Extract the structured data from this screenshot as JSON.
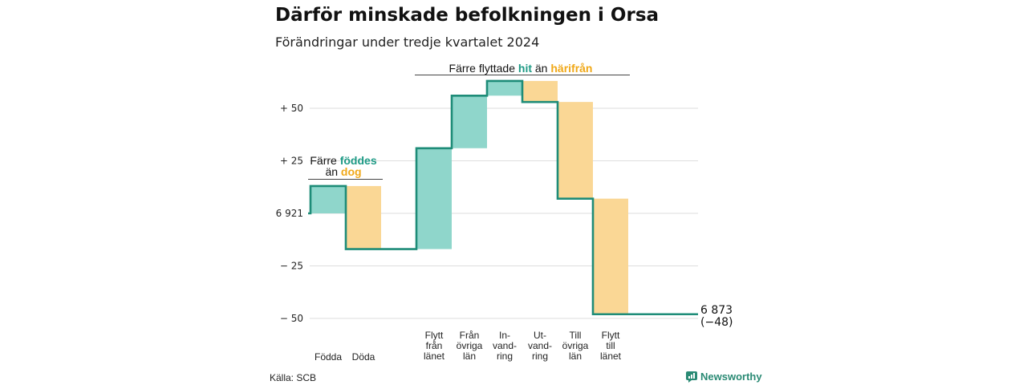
{
  "header": {
    "title": "Därför minskade befolkningen i Orsa",
    "subtitle": "Förändringar under tredje kvartalet 2024"
  },
  "footer": {
    "source": "Källa: SCB",
    "brand": "Newsworthy"
  },
  "colors": {
    "increase": "#8fd6cb",
    "decrease": "#fad795",
    "line": "#1e8c78",
    "hl_increase": "#1e9a85",
    "hl_decrease": "#f0a818",
    "grid": "#dddddd"
  },
  "annotations": {
    "births": {
      "line1_prefix": "Färre",
      "line1_highlight": "föddes",
      "line2_prefix": "än",
      "line2_highlight": "dog"
    },
    "moves": {
      "prefix": "Färre flyttade",
      "highlight1": "hit",
      "middle": "än",
      "highlight2": "härifrån"
    }
  },
  "chart_data": {
    "type": "waterfall",
    "title": "Därför minskade befolkningen i Orsa",
    "subtitle": "Förändringar under tredje kvartalet 2024",
    "start_value": 6921,
    "end_value": 6873,
    "net_change": -48,
    "end_label": [
      "6 873",
      "(−48)"
    ],
    "ylim": [
      -50,
      60
    ],
    "yticks": [
      {
        "value": 50,
        "label": "+ 50"
      },
      {
        "value": 25,
        "label": "+ 25"
      },
      {
        "value": 0,
        "label": "6 921"
      },
      {
        "value": -25,
        "label": "− 25"
      },
      {
        "value": -50,
        "label": "− 50"
      }
    ],
    "steps": [
      {
        "label": [
          "Födda"
        ],
        "value": 13,
        "kind": "increase"
      },
      {
        "label": [
          "Döda"
        ],
        "value": -30,
        "kind": "decrease"
      },
      {
        "label": [],
        "value": 0,
        "kind": "gap"
      },
      {
        "label": [
          "Flytt",
          "från",
          "länet"
        ],
        "value": 48,
        "kind": "increase"
      },
      {
        "label": [
          "Från",
          "övriga",
          "län"
        ],
        "value": 25,
        "kind": "increase"
      },
      {
        "label": [
          "In-",
          "vand-",
          "ring"
        ],
        "value": 7,
        "kind": "increase"
      },
      {
        "label": [
          "Ut-",
          "vand-",
          "ring"
        ],
        "value": -10,
        "kind": "decrease"
      },
      {
        "label": [
          "Till",
          "övriga",
          "län"
        ],
        "value": -46,
        "kind": "decrease"
      },
      {
        "label": [
          "Flytt",
          "till",
          "länet"
        ],
        "value": -55,
        "kind": "decrease"
      }
    ],
    "grid": true
  }
}
